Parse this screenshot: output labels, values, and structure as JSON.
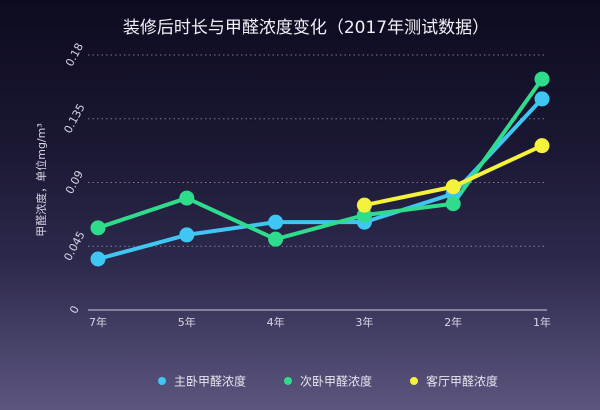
{
  "chart_data": {
    "type": "line",
    "title": "装修后时长与甲醛浓度变化（2017年测试数据）",
    "ylabel": "甲醛浓度，单位mg/m³",
    "xlabel": "",
    "categories": [
      "7年",
      "5年",
      "4年",
      "3年",
      "2年",
      "1年"
    ],
    "ylim": [
      0,
      0.18
    ],
    "yticks": [
      "0",
      "0.045",
      "0.09",
      "0.135",
      "0.18"
    ],
    "grid": true,
    "legend_position": "bottom",
    "series": [
      {
        "name": "主卧甲醛浓度",
        "color": "#3fc6f3",
        "values": [
          0.036,
          0.053,
          0.062,
          0.062,
          0.082,
          0.149
        ]
      },
      {
        "name": "次卧甲醛浓度",
        "color": "#2fdc8c",
        "values": [
          0.058,
          0.079,
          0.05,
          0.067,
          0.075,
          0.163
        ]
      },
      {
        "name": "客厅甲醛浓度",
        "color": "#f4f23a",
        "values": [
          null,
          null,
          null,
          0.074,
          0.087,
          0.116
        ]
      }
    ]
  }
}
